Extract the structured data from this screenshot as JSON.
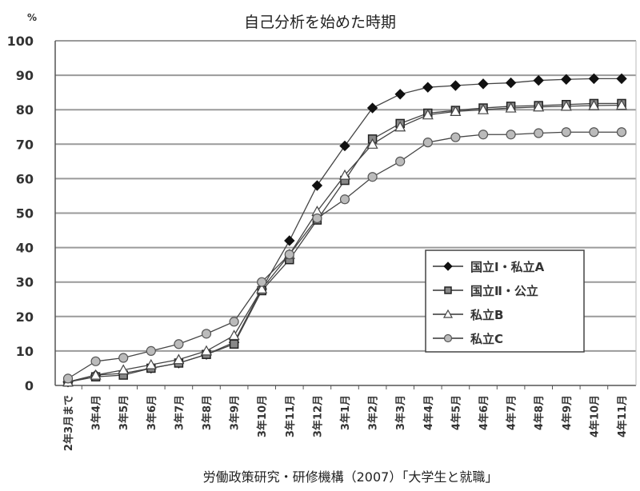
{
  "chart_data": {
    "type": "line",
    "title": "自己分析を始めた時期",
    "ylabel": "%",
    "xlabel": "",
    "ylim": [
      0,
      100
    ],
    "yticks": [
      0,
      10,
      20,
      30,
      40,
      50,
      60,
      70,
      80,
      90,
      100
    ],
    "grid": true,
    "legend_position": "lower right (inside plot)",
    "categories": [
      "2年3月まで",
      "3年4月",
      "3年5月",
      "3年6月",
      "3年7月",
      "3年8月",
      "3年9月",
      "3年10月",
      "3年11月",
      "3年12月",
      "3年1月",
      "3年2月",
      "3年3月",
      "4年4月",
      "4年5月",
      "4年6月",
      "4年7月",
      "4年8月",
      "4年9月",
      "4年10月",
      "4年11月"
    ],
    "series": [
      {
        "name": "国立Ⅰ・私立A",
        "marker": "diamond",
        "values": [
          1,
          3,
          3.5,
          5,
          6.5,
          9,
          12.5,
          28,
          42,
          58,
          69.5,
          80.5,
          84.5,
          86.5,
          87,
          87.5,
          87.8,
          88.5,
          88.8,
          89,
          89
        ]
      },
      {
        "name": "国立Ⅱ・公立",
        "marker": "square",
        "values": [
          1,
          2.5,
          3,
          5,
          6.5,
          9,
          12,
          27.5,
          36.5,
          48,
          59.5,
          71.5,
          76,
          79,
          79.8,
          80.5,
          81,
          81.2,
          81.5,
          81.8,
          81.8
        ]
      },
      {
        "name": "私立B",
        "marker": "triangle",
        "values": [
          1,
          3,
          4.5,
          6,
          7.5,
          10,
          14.5,
          28,
          38,
          50.5,
          61,
          70,
          75,
          78.5,
          79.5,
          80,
          80.5,
          80.8,
          81,
          81.2,
          81.3
        ]
      },
      {
        "name": "私立C",
        "marker": "circle",
        "values": [
          2,
          7,
          8,
          10,
          12,
          15,
          18.5,
          30,
          38,
          48.5,
          54,
          60.5,
          65,
          70.5,
          72,
          72.8,
          72.8,
          73.2,
          73.5,
          73.5,
          73.5
        ]
      }
    ],
    "source": "労働政策研究・研修機構（2007）「大学生と就職」"
  }
}
